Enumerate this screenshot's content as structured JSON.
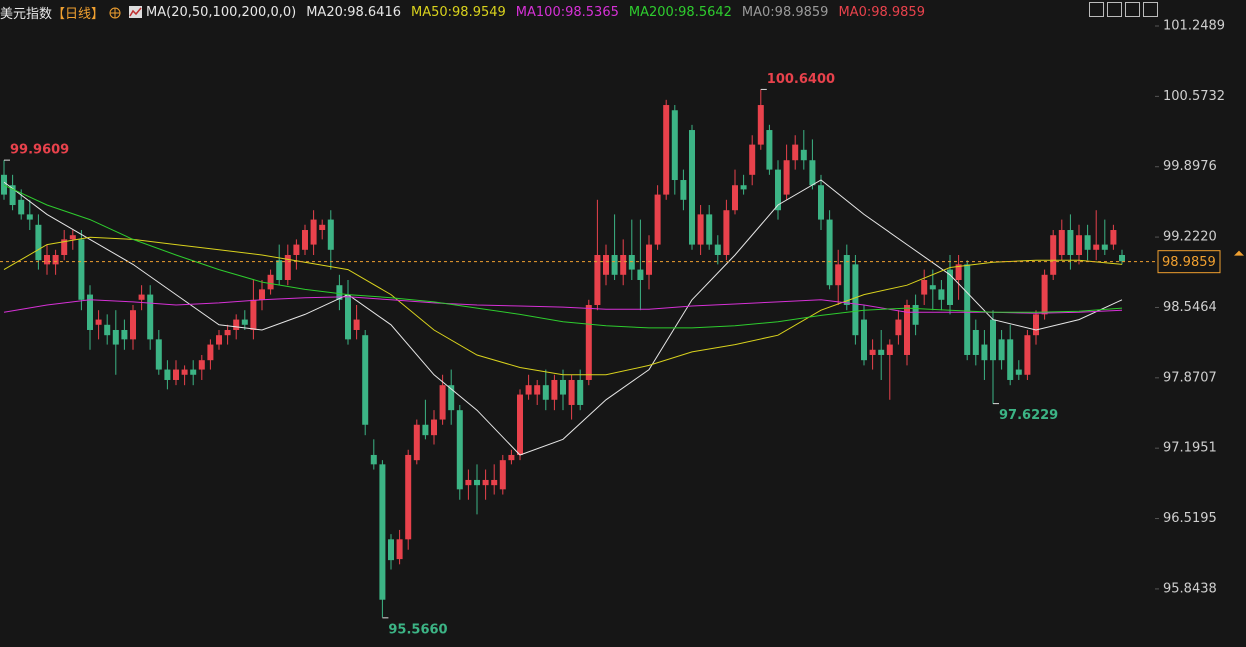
{
  "header": {
    "title": "美元指数",
    "period": "【日线】",
    "indicator": "MA(20,50,100,200,0,0)"
  },
  "chart_data": {
    "type": "candlestick",
    "up_color": "#e8424c",
    "down_color": "#3cb485",
    "ylim": [
      95.286,
      101.4986
    ],
    "yticks": [
      101.2489,
      100.5732,
      99.8976,
      {
        "value": 99.222,
        "label": "99.2220"
      },
      98.5464,
      97.8707,
      97.1951,
      96.5195,
      95.8438
    ],
    "grid": false,
    "ohlc": [
      [
        99.82,
        99.96,
        99.58,
        99.63
      ],
      [
        99.72,
        99.82,
        99.48,
        99.53
      ],
      [
        99.58,
        99.68,
        99.39,
        99.44
      ],
      [
        99.44,
        99.58,
        99.29,
        99.39
      ],
      [
        99.34,
        99.44,
        98.91,
        99.0
      ],
      [
        98.96,
        99.15,
        98.86,
        99.05
      ],
      [
        98.96,
        99.1,
        98.86,
        99.05
      ],
      [
        99.05,
        99.29,
        99.0,
        99.2
      ],
      [
        99.2,
        99.29,
        99.1,
        99.24
      ],
      [
        99.2,
        99.29,
        98.52,
        98.62
      ],
      [
        98.67,
        98.76,
        98.14,
        98.33
      ],
      [
        98.38,
        98.52,
        98.24,
        98.43
      ],
      [
        98.38,
        98.48,
        98.19,
        98.28
      ],
      [
        98.33,
        98.52,
        97.9,
        98.19
      ],
      [
        98.33,
        98.43,
        98.14,
        98.24
      ],
      [
        98.24,
        98.57,
        98.14,
        98.52
      ],
      [
        98.62,
        98.76,
        98.52,
        98.67
      ],
      [
        98.67,
        98.76,
        98.14,
        98.24
      ],
      [
        98.24,
        98.33,
        97.9,
        97.95
      ],
      [
        97.95,
        98.04,
        97.76,
        97.85
      ],
      [
        97.85,
        98.04,
        97.8,
        97.95
      ],
      [
        97.9,
        97.99,
        97.8,
        97.95
      ],
      [
        97.95,
        98.04,
        97.8,
        97.9
      ],
      [
        97.95,
        98.09,
        97.85,
        98.04
      ],
      [
        98.04,
        98.24,
        97.95,
        98.19
      ],
      [
        98.19,
        98.33,
        98.14,
        98.28
      ],
      [
        98.28,
        98.38,
        98.19,
        98.33
      ],
      [
        98.33,
        98.48,
        98.24,
        98.43
      ],
      [
        98.43,
        98.52,
        98.33,
        98.38
      ],
      [
        98.33,
        98.81,
        98.24,
        98.62
      ],
      [
        98.62,
        98.81,
        98.52,
        98.72
      ],
      [
        98.72,
        98.91,
        98.67,
        98.86
      ],
      [
        99.0,
        99.15,
        98.76,
        98.81
      ],
      [
        98.81,
        99.15,
        98.76,
        99.05
      ],
      [
        99.05,
        99.2,
        98.91,
        99.15
      ],
      [
        99.1,
        99.34,
        99.05,
        99.29
      ],
      [
        99.15,
        99.48,
        99.05,
        99.39
      ],
      [
        99.29,
        99.39,
        99.2,
        99.34
      ],
      [
        99.39,
        99.48,
        98.91,
        99.1
      ],
      [
        98.76,
        98.86,
        98.52,
        98.62
      ],
      [
        98.67,
        98.81,
        98.19,
        98.24
      ],
      [
        98.33,
        98.57,
        98.24,
        98.43
      ],
      [
        98.28,
        98.33,
        97.32,
        97.42
      ],
      [
        97.13,
        97.28,
        96.99,
        97.04
      ],
      [
        97.04,
        97.08,
        95.57,
        95.74
      ],
      [
        96.32,
        96.37,
        96.03,
        96.12
      ],
      [
        96.13,
        96.41,
        96.08,
        96.32
      ],
      [
        96.32,
        97.18,
        96.22,
        97.13
      ],
      [
        97.08,
        97.47,
        97.04,
        97.42
      ],
      [
        97.42,
        97.66,
        97.28,
        97.32
      ],
      [
        97.32,
        97.56,
        97.23,
        97.47
      ],
      [
        97.47,
        97.9,
        97.42,
        97.8
      ],
      [
        97.8,
        97.95,
        97.42,
        97.56
      ],
      [
        97.56,
        97.61,
        96.7,
        96.8
      ],
      [
        96.84,
        96.99,
        96.7,
        96.89
      ],
      [
        96.89,
        97.04,
        96.56,
        96.84
      ],
      [
        96.84,
        96.99,
        96.7,
        96.89
      ],
      [
        96.84,
        97.04,
        96.75,
        96.89
      ],
      [
        96.8,
        97.13,
        96.75,
        97.08
      ],
      [
        97.08,
        97.18,
        97.04,
        97.13
      ],
      [
        97.13,
        97.76,
        97.08,
        97.71
      ],
      [
        97.71,
        97.9,
        97.66,
        97.8
      ],
      [
        97.71,
        97.85,
        97.61,
        97.8
      ],
      [
        97.8,
        97.95,
        97.56,
        97.66
      ],
      [
        97.66,
        97.9,
        97.56,
        97.85
      ],
      [
        97.85,
        97.95,
        97.56,
        97.71
      ],
      [
        97.61,
        97.9,
        97.47,
        97.85
      ],
      [
        97.85,
        97.95,
        97.56,
        97.61
      ],
      [
        97.85,
        98.62,
        97.8,
        98.57
      ],
      [
        98.57,
        99.58,
        98.52,
        99.05
      ],
      [
        98.86,
        99.15,
        98.76,
        99.05
      ],
      [
        99.05,
        99.44,
        98.81,
        98.86
      ],
      [
        98.86,
        99.2,
        98.76,
        99.05
      ],
      [
        99.05,
        99.39,
        98.81,
        98.91
      ],
      [
        98.91,
        99.39,
        98.52,
        98.81
      ],
      [
        98.86,
        99.24,
        98.72,
        99.15
      ],
      [
        99.15,
        99.72,
        99.1,
        99.63
      ],
      [
        99.63,
        100.54,
        99.58,
        100.49
      ],
      [
        100.44,
        100.49,
        99.63,
        99.77
      ],
      [
        99.77,
        99.87,
        99.48,
        99.58
      ],
      [
        100.25,
        100.3,
        99.1,
        99.15
      ],
      [
        99.15,
        99.53,
        99.05,
        99.44
      ],
      [
        99.44,
        99.53,
        99.1,
        99.15
      ],
      [
        99.15,
        99.24,
        98.96,
        99.05
      ],
      [
        99.05,
        99.58,
        99.0,
        99.48
      ],
      [
        99.48,
        99.87,
        99.44,
        99.72
      ],
      [
        99.72,
        99.82,
        99.63,
        99.68
      ],
      [
        99.82,
        100.2,
        99.72,
        100.11
      ],
      [
        100.11,
        100.64,
        100.06,
        100.49
      ],
      [
        100.25,
        100.3,
        99.82,
        99.87
      ],
      [
        99.87,
        99.96,
        99.39,
        99.48
      ],
      [
        99.63,
        100.11,
        99.58,
        99.96
      ],
      [
        99.96,
        100.2,
        99.87,
        100.11
      ],
      [
        100.06,
        100.25,
        99.87,
        99.96
      ],
      [
        99.96,
        100.16,
        99.68,
        99.72
      ],
      [
        99.72,
        99.82,
        99.29,
        99.39
      ],
      [
        99.39,
        99.48,
        98.72,
        98.76
      ],
      [
        98.76,
        99.1,
        98.57,
        98.96
      ],
      [
        99.05,
        99.15,
        98.52,
        98.57
      ],
      [
        98.96,
        99.05,
        98.19,
        98.28
      ],
      [
        98.43,
        98.57,
        97.99,
        98.04
      ],
      [
        98.09,
        98.24,
        97.95,
        98.14
      ],
      [
        98.14,
        98.33,
        97.85,
        98.09
      ],
      [
        98.09,
        98.24,
        97.66,
        98.19
      ],
      [
        98.28,
        98.52,
        98.19,
        98.43
      ],
      [
        98.09,
        98.62,
        97.99,
        98.57
      ],
      [
        98.57,
        98.67,
        98.28,
        98.38
      ],
      [
        98.67,
        98.91,
        98.57,
        98.81
      ],
      [
        98.76,
        98.91,
        98.52,
        98.72
      ],
      [
        98.72,
        98.81,
        98.52,
        98.62
      ],
      [
        98.91,
        99.05,
        98.48,
        98.57
      ],
      [
        98.81,
        99.05,
        98.62,
        98.96
      ],
      [
        98.96,
        99.0,
        98.04,
        98.09
      ],
      [
        98.33,
        98.43,
        97.99,
        98.09
      ],
      [
        98.19,
        98.33,
        97.85,
        98.04
      ],
      [
        98.43,
        98.52,
        97.62,
        98.04
      ],
      [
        98.24,
        98.33,
        97.95,
        98.04
      ],
      [
        98.24,
        98.38,
        97.8,
        97.85
      ],
      [
        97.95,
        98.04,
        97.85,
        97.9
      ],
      [
        97.9,
        98.33,
        97.85,
        98.28
      ],
      [
        98.28,
        98.52,
        98.19,
        98.48
      ],
      [
        98.48,
        98.91,
        98.43,
        98.86
      ],
      [
        98.86,
        99.29,
        98.81,
        99.24
      ],
      [
        99.05,
        99.39,
        99.0,
        99.29
      ],
      [
        99.29,
        99.44,
        98.91,
        99.05
      ],
      [
        99.05,
        99.34,
        98.96,
        99.24
      ],
      [
        99.24,
        99.34,
        99.0,
        99.1
      ],
      [
        99.1,
        99.48,
        99.0,
        99.15
      ],
      [
        99.15,
        99.39,
        99.05,
        99.1
      ],
      [
        99.15,
        99.34,
        99.1,
        99.29
      ],
      [
        99.05,
        99.1,
        98.96,
        98.99
      ]
    ],
    "ma_x": [
      0,
      5,
      10,
      15,
      20,
      25,
      30,
      35,
      40,
      45,
      50,
      55,
      60,
      65,
      70,
      75,
      80,
      85,
      90,
      95,
      100,
      105,
      110,
      115,
      120,
      125,
      130
    ],
    "series": [
      {
        "name": "MA20:98.6416",
        "color": "#e6e6e6",
        "values": [
          99.75,
          99.44,
          99.2,
          98.96,
          98.67,
          98.38,
          98.33,
          98.48,
          98.67,
          98.38,
          97.9,
          97.56,
          97.13,
          97.28,
          97.66,
          97.95,
          98.62,
          99.05,
          99.53,
          99.77,
          99.44,
          99.15,
          98.86,
          98.43,
          98.33,
          98.43,
          98.62
        ]
      },
      {
        "name": "MA50:98.9549",
        "color": "#d9d21d",
        "values": [
          98.91,
          99.15,
          99.22,
          99.2,
          99.15,
          99.1,
          99.05,
          98.98,
          98.91,
          98.67,
          98.33,
          98.09,
          97.97,
          97.9,
          97.9,
          97.99,
          98.12,
          98.19,
          98.28,
          98.52,
          98.67,
          98.76,
          98.93,
          98.98,
          99.0,
          99.0,
          98.96
        ]
      },
      {
        "name": "MA100:98.5365",
        "color": "#d631d6",
        "values": [
          98.5,
          98.57,
          98.62,
          98.6,
          98.57,
          98.59,
          98.62,
          98.64,
          98.65,
          98.62,
          98.59,
          98.57,
          98.56,
          98.55,
          98.53,
          98.53,
          98.56,
          98.58,
          98.6,
          98.62,
          98.57,
          98.5,
          98.5,
          98.5,
          98.49,
          98.5,
          98.52
        ]
      },
      {
        "name": "MA200:98.5642",
        "color": "#2ecc2e",
        "values": [
          99.72,
          99.53,
          99.39,
          99.2,
          99.05,
          98.91,
          98.79,
          98.72,
          98.67,
          98.64,
          98.6,
          98.54,
          98.48,
          98.41,
          98.37,
          98.35,
          98.35,
          98.37,
          98.41,
          98.47,
          98.52,
          98.54,
          98.52,
          98.5,
          98.5,
          98.51,
          98.54
        ]
      }
    ],
    "legend_extra": [
      {
        "name": "MA0:98.9859",
        "color": "#9a9a9a"
      },
      {
        "name": "MA0:98.9859",
        "color": "#e8424c"
      }
    ],
    "annotations": [
      {
        "label": "99.9609",
        "value": 99.9609,
        "index": 0,
        "color": "#e8424c"
      },
      {
        "label": "100.6400",
        "value": 100.64,
        "index": 88,
        "color": "#e8424c"
      },
      {
        "label": "97.6229",
        "value": 97.6229,
        "index": 115,
        "color": "#3cb485"
      },
      {
        "label": "95.5660",
        "value": 95.566,
        "index": 44,
        "color": "#3cb485"
      }
    ],
    "last_price": {
      "label": "98.9859",
      "value": 98.9859,
      "color": "#f0a030"
    }
  }
}
